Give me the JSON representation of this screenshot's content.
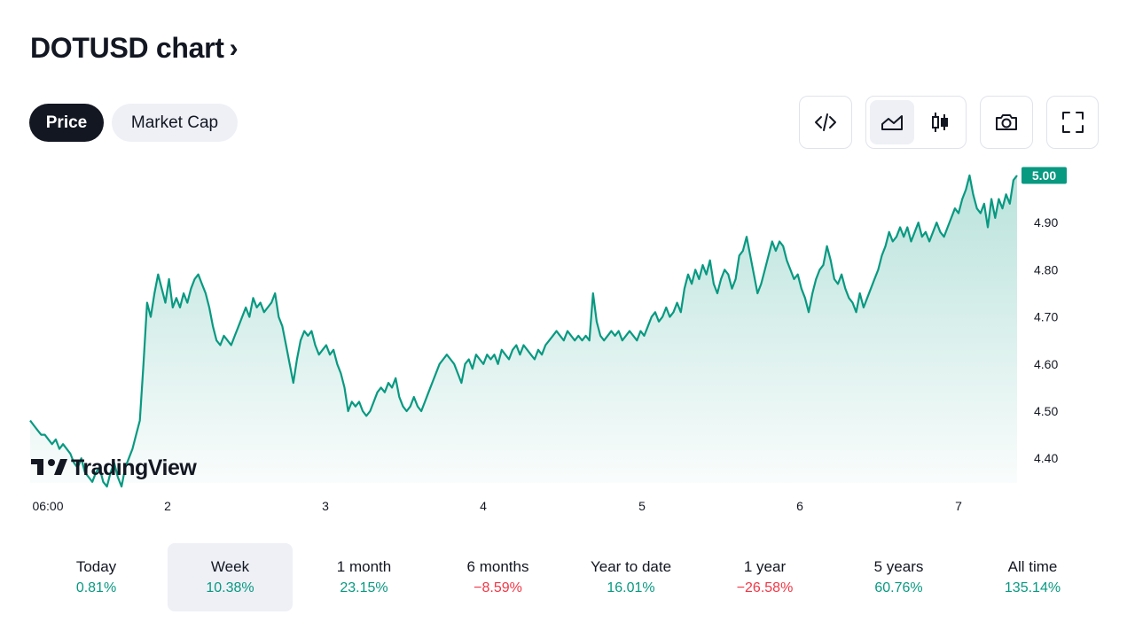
{
  "header": {
    "title": "DOTUSD chart",
    "title_chevron": "›"
  },
  "tabs": [
    {
      "label": "Price",
      "active": true
    },
    {
      "label": "Market Cap",
      "active": false
    }
  ],
  "toolbar": {
    "icons": [
      "embed-code-icon",
      "area-chart-icon",
      "candlestick-icon",
      "camera-icon",
      "fullscreen-icon"
    ],
    "active_chart_style": "area-chart-icon"
  },
  "chart_data": {
    "type": "area",
    "symbol": "DOTUSD",
    "x_tick_labels": [
      "06:00",
      "2",
      "3",
      "4",
      "5",
      "6",
      "7"
    ],
    "y_tick_labels": [
      "4.90",
      "4.80",
      "4.70",
      "4.60",
      "4.50",
      "4.40"
    ],
    "ylim": [
      4.33,
      5.02
    ],
    "last_price": "5.00",
    "line_color": "#089981",
    "fill_color": "#089981",
    "watermark": "TradingView",
    "series": [
      {
        "values": [
          4.48,
          4.47,
          4.46,
          4.45,
          4.45,
          4.44,
          4.43,
          4.44,
          4.42,
          4.43,
          4.42,
          4.41,
          4.39,
          4.38,
          4.4,
          4.37,
          4.36,
          4.35,
          4.37,
          4.38,
          4.35,
          4.34,
          4.37,
          4.39,
          4.36,
          4.34,
          4.38,
          4.4,
          4.42,
          4.45,
          4.48,
          4.6,
          4.73,
          4.7,
          4.75,
          4.79,
          4.76,
          4.73,
          4.78,
          4.72,
          4.74,
          4.72,
          4.75,
          4.73,
          4.76,
          4.78,
          4.79,
          4.77,
          4.75,
          4.72,
          4.68,
          4.65,
          4.64,
          4.66,
          4.65,
          4.64,
          4.66,
          4.68,
          4.7,
          4.72,
          4.7,
          4.74,
          4.72,
          4.73,
          4.71,
          4.72,
          4.73,
          4.75,
          4.7,
          4.68,
          4.64,
          4.6,
          4.56,
          4.61,
          4.65,
          4.67,
          4.66,
          4.67,
          4.64,
          4.62,
          4.63,
          4.64,
          4.62,
          4.63,
          4.6,
          4.58,
          4.55,
          4.5,
          4.52,
          4.51,
          4.52,
          4.5,
          4.49,
          4.5,
          4.52,
          4.54,
          4.55,
          4.54,
          4.56,
          4.55,
          4.57,
          4.53,
          4.51,
          4.5,
          4.51,
          4.53,
          4.51,
          4.5,
          4.52,
          4.54,
          4.56,
          4.58,
          4.6,
          4.61,
          4.62,
          4.61,
          4.6,
          4.58,
          4.56,
          4.6,
          4.61,
          4.59,
          4.62,
          4.61,
          4.6,
          4.62,
          4.61,
          4.62,
          4.6,
          4.63,
          4.62,
          4.61,
          4.63,
          4.64,
          4.62,
          4.64,
          4.63,
          4.62,
          4.61,
          4.63,
          4.62,
          4.64,
          4.65,
          4.66,
          4.67,
          4.66,
          4.65,
          4.67,
          4.66,
          4.65,
          4.66,
          4.65,
          4.66,
          4.65,
          4.75,
          4.69,
          4.66,
          4.65,
          4.66,
          4.67,
          4.66,
          4.67,
          4.65,
          4.66,
          4.67,
          4.66,
          4.65,
          4.67,
          4.66,
          4.68,
          4.7,
          4.71,
          4.69,
          4.7,
          4.72,
          4.7,
          4.71,
          4.73,
          4.71,
          4.76,
          4.79,
          4.77,
          4.8,
          4.78,
          4.81,
          4.79,
          4.82,
          4.77,
          4.75,
          4.78,
          4.8,
          4.79,
          4.76,
          4.78,
          4.83,
          4.84,
          4.87,
          4.83,
          4.79,
          4.75,
          4.77,
          4.8,
          4.83,
          4.86,
          4.84,
          4.86,
          4.85,
          4.82,
          4.8,
          4.78,
          4.79,
          4.76,
          4.74,
          4.71,
          4.75,
          4.78,
          4.8,
          4.81,
          4.85,
          4.82,
          4.78,
          4.77,
          4.79,
          4.76,
          4.74,
          4.73,
          4.71,
          4.75,
          4.72,
          4.74,
          4.76,
          4.78,
          4.8,
          4.83,
          4.85,
          4.88,
          4.86,
          4.87,
          4.89,
          4.87,
          4.89,
          4.86,
          4.88,
          4.9,
          4.87,
          4.88,
          4.86,
          4.88,
          4.9,
          4.88,
          4.87,
          4.89,
          4.91,
          4.93,
          4.92,
          4.95,
          4.97,
          5.0,
          4.96,
          4.93,
          4.92,
          4.94,
          4.89,
          4.95,
          4.91,
          4.95,
          4.93,
          4.96,
          4.94,
          4.99,
          5.0
        ]
      }
    ]
  },
  "periods": [
    {
      "label": "Today",
      "value": "0.81%",
      "trend": "pos",
      "active": false
    },
    {
      "label": "Week",
      "value": "10.38%",
      "trend": "pos",
      "active": true
    },
    {
      "label": "1 month",
      "value": "23.15%",
      "trend": "pos",
      "active": false
    },
    {
      "label": "6 months",
      "value": "−8.59%",
      "trend": "neg",
      "active": false
    },
    {
      "label": "Year to date",
      "value": "16.01%",
      "trend": "pos",
      "active": false
    },
    {
      "label": "1 year",
      "value": "−26.58%",
      "trend": "neg",
      "active": false
    },
    {
      "label": "5 years",
      "value": "60.76%",
      "trend": "pos",
      "active": false
    },
    {
      "label": "All time",
      "value": "135.14%",
      "trend": "pos",
      "active": false
    }
  ]
}
